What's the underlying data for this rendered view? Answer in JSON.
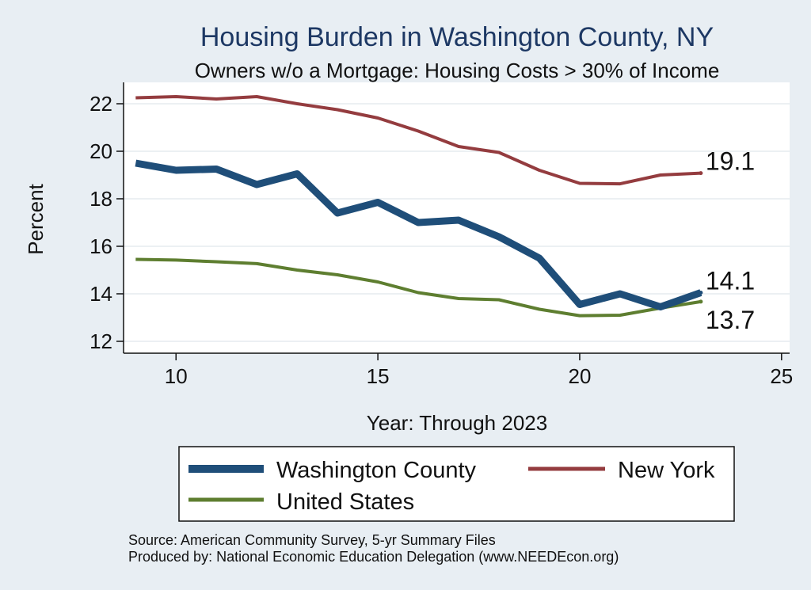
{
  "chart_data": {
    "type": "line",
    "title": "Housing Burden in Washington County, NY",
    "subtitle": "Owners w/o a Mortgage: Housing Costs > 30% of Income",
    "xlabel": "Year: Through 2023",
    "ylabel": "Percent",
    "xlim": [
      8.7,
      25.2
    ],
    "ylim": [
      11.5,
      22.9
    ],
    "xticks": [
      10,
      15,
      20,
      25
    ],
    "yticks": [
      12,
      14,
      16,
      18,
      20,
      22
    ],
    "grid": true,
    "x": [
      9,
      10,
      11,
      12,
      13,
      14,
      15,
      16,
      17,
      18,
      19,
      20,
      21,
      22,
      23
    ],
    "series": [
      {
        "name": "Washington County",
        "color": "#1f4e79",
        "width": 9,
        "values": [
          19.5,
          19.2,
          19.25,
          18.6,
          19.05,
          17.4,
          17.85,
          17.0,
          17.1,
          16.4,
          15.5,
          13.55,
          14.0,
          13.45,
          14.05
        ],
        "end_label": "14.1"
      },
      {
        "name": "New York",
        "color": "#943c3f",
        "width": 4,
        "values": [
          22.25,
          22.3,
          22.2,
          22.3,
          22.0,
          21.75,
          21.4,
          20.85,
          20.2,
          19.95,
          19.2,
          18.65,
          18.63,
          19.0,
          19.08
        ],
        "end_label": "19.1"
      },
      {
        "name": "United States",
        "color": "#5e7e30",
        "width": 4,
        "values": [
          15.45,
          15.42,
          15.35,
          15.27,
          15.0,
          14.8,
          14.5,
          14.05,
          13.8,
          13.75,
          13.35,
          13.08,
          13.1,
          13.4,
          13.67
        ],
        "end_label": "13.7"
      }
    ],
    "legend_position": "bottom"
  },
  "notes": {
    "source": "Source: American Community Survey, 5-yr Summary Files",
    "produced": "Produced by: National Economic Education Delegation (www.NEEDEcon.org)"
  }
}
